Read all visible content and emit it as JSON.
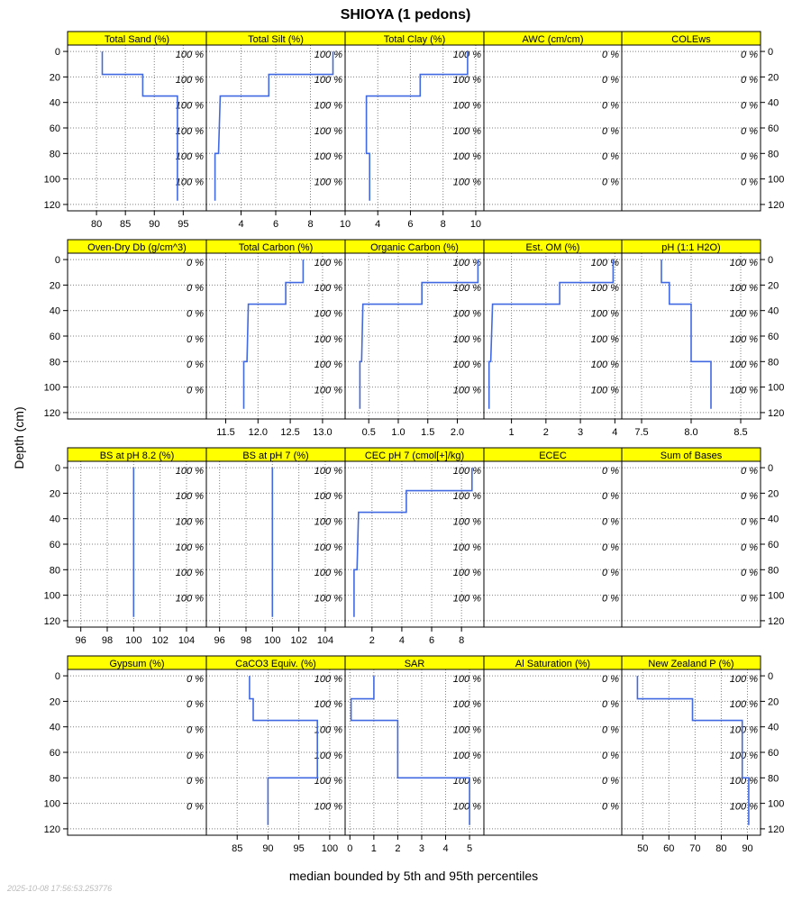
{
  "figure": {
    "title": "SHIOYA (1 pedons)",
    "ylabel": "Depth (cm)",
    "xlabel": "median bounded by 5th and 95th percentiles",
    "timestamp": "2025-10-08 17:56:53.253776",
    "colors": {
      "strip": "#ffff00",
      "line": "#4169e1",
      "grid": "#808080"
    }
  },
  "chart_data": [
    {
      "type": "line",
      "title": "Total Sand (%)",
      "xlim": [
        75,
        99
      ],
      "xticks": [
        80,
        85,
        90,
        95
      ],
      "ylim": [
        125,
        -5
      ],
      "yticks": [
        0,
        20,
        40,
        60,
        80,
        100,
        120
      ],
      "pct_labels": [
        "100 %",
        "100 %",
        "100 %",
        "100 %",
        "100 %",
        "100 %"
      ],
      "pct_depths": [
        2,
        22,
        42,
        62,
        82,
        102
      ],
      "series": [
        {
          "depth": [
            0,
            18,
            18,
            20,
            20,
            35,
            35,
            80,
            80,
            117
          ],
          "value": [
            81,
            81,
            88,
            88,
            88,
            88,
            94,
            94,
            94,
            94
          ]
        }
      ]
    },
    {
      "type": "line",
      "title": "Total Silt (%)",
      "xlim": [
        2,
        10
      ],
      "xticks": [
        4,
        6,
        8,
        10
      ],
      "ylim": [
        125,
        -5
      ],
      "yticks": [
        0,
        20,
        40,
        60,
        80,
        100,
        120
      ],
      "pct_labels": [
        "100 %",
        "100 %",
        "100 %",
        "100 %",
        "100 %",
        "100 %"
      ],
      "pct_depths": [
        2,
        22,
        42,
        62,
        82,
        102
      ],
      "series": [
        {
          "depth": [
            0,
            18,
            18,
            20,
            20,
            35,
            35,
            80,
            80,
            117
          ],
          "value": [
            9.3,
            9.3,
            5.6,
            5.6,
            5.6,
            5.6,
            2.8,
            2.7,
            2.5,
            2.5
          ]
        }
      ]
    },
    {
      "type": "line",
      "title": "Total Clay (%)",
      "xlim": [
        2,
        10.5
      ],
      "xticks": [
        4,
        6,
        8,
        10
      ],
      "ylim": [
        125,
        -5
      ],
      "yticks": [
        0,
        20,
        40,
        60,
        80,
        100,
        120
      ],
      "pct_labels": [
        "100 %",
        "100 %",
        "100 %",
        "100 %",
        "100 %",
        "100 %"
      ],
      "pct_depths": [
        2,
        22,
        42,
        62,
        82,
        102
      ],
      "series": [
        {
          "depth": [
            0,
            18,
            18,
            20,
            20,
            35,
            35,
            80,
            80,
            117
          ],
          "value": [
            9.5,
            9.5,
            6.6,
            6.6,
            6.6,
            6.6,
            3.3,
            3.3,
            3.5,
            3.5
          ]
        }
      ]
    },
    {
      "type": "line",
      "title": "AWC (cm/cm)",
      "xlim": [
        0,
        1
      ],
      "xticks": [],
      "ylim": [
        125,
        -5
      ],
      "yticks": [
        0,
        20,
        40,
        60,
        80,
        100,
        120
      ],
      "pct_labels": [
        "0 %",
        "0 %",
        "0 %",
        "0 %",
        "0 %",
        "0 %"
      ],
      "pct_depths": [
        2,
        22,
        42,
        62,
        82,
        102
      ],
      "series": []
    },
    {
      "type": "line",
      "title": "COLEws",
      "xlim": [
        0,
        1
      ],
      "xticks": [],
      "ylim": [
        125,
        -5
      ],
      "yticks": [
        0,
        20,
        40,
        60,
        80,
        100,
        120
      ],
      "pct_labels": [
        "0 %",
        "0 %",
        "0 %",
        "0 %",
        "0 %",
        "0 %"
      ],
      "pct_depths": [
        2,
        22,
        42,
        62,
        82,
        102
      ],
      "series": []
    },
    {
      "type": "line",
      "title": "Oven-Dry Db (g/cm^3)",
      "xlim": [
        0,
        1
      ],
      "xticks": [],
      "ylim": [
        125,
        -5
      ],
      "yticks": [
        0,
        20,
        40,
        60,
        80,
        100,
        120
      ],
      "pct_labels": [
        "0 %",
        "0 %",
        "0 %",
        "0 %",
        "0 %",
        "0 %"
      ],
      "pct_depths": [
        2,
        22,
        42,
        62,
        82,
        102
      ],
      "series": []
    },
    {
      "type": "line",
      "title": "Total Carbon (%)",
      "xlim": [
        11.2,
        13.35
      ],
      "xticks": [
        11.5,
        12.0,
        12.5,
        13.0
      ],
      "xtick_labels": [
        "11.5",
        "12.0",
        "12.5",
        "13.0"
      ],
      "ylim": [
        125,
        -5
      ],
      "yticks": [
        0,
        20,
        40,
        60,
        80,
        100,
        120
      ],
      "pct_labels": [
        "100 %",
        "100 %",
        "100 %",
        "100 %",
        "100 %",
        "100 %"
      ],
      "pct_depths": [
        2,
        22,
        42,
        62,
        82,
        102
      ],
      "series": [
        {
          "depth": [
            0,
            18,
            18,
            20,
            20,
            35,
            35,
            80,
            80,
            117
          ],
          "value": [
            12.7,
            12.7,
            12.43,
            12.43,
            12.43,
            12.43,
            11.85,
            11.83,
            11.78,
            11.78
          ]
        }
      ]
    },
    {
      "type": "line",
      "title": "Organic Carbon (%)",
      "xlim": [
        0.1,
        2.45
      ],
      "xticks": [
        0.5,
        1.0,
        1.5,
        2.0
      ],
      "xtick_labels": [
        "0.5",
        "1.0",
        "1.5",
        "2.0"
      ],
      "ylim": [
        125,
        -5
      ],
      "yticks": [
        0,
        20,
        40,
        60,
        80,
        100,
        120
      ],
      "pct_labels": [
        "100 %",
        "100 %",
        "100 %",
        "100 %",
        "100 %",
        "100 %"
      ],
      "pct_depths": [
        2,
        22,
        42,
        62,
        82,
        102
      ],
      "series": [
        {
          "depth": [
            0,
            18,
            18,
            20,
            20,
            35,
            35,
            80,
            80,
            117
          ],
          "value": [
            2.35,
            2.35,
            1.4,
            1.4,
            1.4,
            1.4,
            0.4,
            0.38,
            0.35,
            0.35
          ]
        }
      ]
    },
    {
      "type": "line",
      "title": "Est. OM (%)",
      "xlim": [
        0.2,
        4.2
      ],
      "xticks": [
        1,
        2,
        3,
        4
      ],
      "ylim": [
        125,
        -5
      ],
      "yticks": [
        0,
        20,
        40,
        60,
        80,
        100,
        120
      ],
      "pct_labels": [
        "100 %",
        "100 %",
        "100 %",
        "100 %",
        "100 %",
        "100 %"
      ],
      "pct_depths": [
        2,
        22,
        42,
        62,
        82,
        102
      ],
      "series": [
        {
          "depth": [
            0,
            18,
            18,
            20,
            20,
            35,
            35,
            80,
            80,
            117
          ],
          "value": [
            3.95,
            3.95,
            2.4,
            2.4,
            2.4,
            2.4,
            0.45,
            0.4,
            0.35,
            0.35
          ]
        }
      ]
    },
    {
      "type": "line",
      "title": "pH (1:1 H2O)",
      "xlim": [
        7.3,
        8.7
      ],
      "xticks": [
        7.5,
        8.0,
        8.5
      ],
      "xtick_labels": [
        "7.5",
        "8.0",
        "8.5"
      ],
      "ylim": [
        125,
        -5
      ],
      "yticks": [
        0,
        20,
        40,
        60,
        80,
        100,
        120
      ],
      "pct_labels": [
        "100 %",
        "100 %",
        "100 %",
        "100 %",
        "100 %",
        "100 %"
      ],
      "pct_depths": [
        2,
        22,
        42,
        62,
        82,
        102
      ],
      "series": [
        {
          "depth": [
            0,
            18,
            18,
            20,
            20,
            35,
            35,
            80,
            80,
            117
          ],
          "value": [
            7.7,
            7.7,
            7.78,
            7.78,
            7.78,
            7.78,
            8.0,
            8.0,
            8.2,
            8.2
          ]
        }
      ]
    },
    {
      "type": "line",
      "title": "BS at pH 8.2 (%)",
      "xlim": [
        95,
        105.5
      ],
      "xticks": [
        96,
        98,
        100,
        102,
        104
      ],
      "ylim": [
        125,
        -5
      ],
      "yticks": [
        0,
        20,
        40,
        60,
        80,
        100,
        120
      ],
      "pct_labels": [
        "100 %",
        "100 %",
        "100 %",
        "100 %",
        "100 %",
        "100 %"
      ],
      "pct_depths": [
        2,
        22,
        42,
        62,
        82,
        102
      ],
      "series": [
        {
          "depth": [
            0,
            117
          ],
          "value": [
            100,
            100
          ]
        }
      ]
    },
    {
      "type": "line",
      "title": "BS at pH 7 (%)",
      "xlim": [
        95,
        105.5
      ],
      "xticks": [
        96,
        98,
        100,
        102,
        104
      ],
      "ylim": [
        125,
        -5
      ],
      "yticks": [
        0,
        20,
        40,
        60,
        80,
        100,
        120
      ],
      "pct_labels": [
        "100 %",
        "100 %",
        "100 %",
        "100 %",
        "100 %",
        "100 %"
      ],
      "pct_depths": [
        2,
        22,
        42,
        62,
        82,
        102
      ],
      "series": [
        {
          "depth": [
            0,
            117
          ],
          "value": [
            100,
            100
          ]
        }
      ]
    },
    {
      "type": "line",
      "title": "CEC pH 7 (cmol[+]/kg)",
      "xlim": [
        0.2,
        9.5
      ],
      "xticks": [
        2,
        4,
        6,
        8
      ],
      "ylim": [
        125,
        -5
      ],
      "yticks": [
        0,
        20,
        40,
        60,
        80,
        100,
        120
      ],
      "pct_labels": [
        "100 %",
        "100 %",
        "100 %",
        "100 %",
        "100 %",
        "100 %"
      ],
      "pct_depths": [
        2,
        22,
        42,
        62,
        82,
        102
      ],
      "series": [
        {
          "depth": [
            0,
            18,
            18,
            20,
            20,
            35,
            35,
            80,
            80,
            117
          ],
          "value": [
            8.7,
            8.7,
            4.3,
            4.3,
            4.3,
            4.3,
            1.1,
            1.0,
            0.8,
            0.8
          ]
        }
      ]
    },
    {
      "type": "line",
      "title": "ECEC",
      "xlim": [
        0,
        1
      ],
      "xticks": [],
      "ylim": [
        125,
        -5
      ],
      "yticks": [
        0,
        20,
        40,
        60,
        80,
        100,
        120
      ],
      "pct_labels": [
        "0 %",
        "0 %",
        "0 %",
        "0 %",
        "0 %",
        "0 %"
      ],
      "pct_depths": [
        2,
        22,
        42,
        62,
        82,
        102
      ],
      "series": []
    },
    {
      "type": "line",
      "title": "Sum of Bases",
      "xlim": [
        0,
        1
      ],
      "xticks": [],
      "ylim": [
        125,
        -5
      ],
      "yticks": [
        0,
        20,
        40,
        60,
        80,
        100,
        120
      ],
      "pct_labels": [
        "0 %",
        "0 %",
        "0 %",
        "0 %",
        "0 %",
        "0 %"
      ],
      "pct_depths": [
        2,
        22,
        42,
        62,
        82,
        102
      ],
      "series": []
    },
    {
      "type": "line",
      "title": "Gypsum (%)",
      "xlim": [
        0,
        1
      ],
      "xticks": [],
      "ylim": [
        125,
        -5
      ],
      "yticks": [
        0,
        20,
        40,
        60,
        80,
        100,
        120
      ],
      "pct_labels": [
        "0 %",
        "0 %",
        "0 %",
        "0 %",
        "0 %",
        "0 %"
      ],
      "pct_depths": [
        2,
        22,
        42,
        62,
        82,
        102
      ],
      "series": []
    },
    {
      "type": "line",
      "title": "CaCO3 Equiv. (%)",
      "xlim": [
        80,
        102.5
      ],
      "xticks": [
        85,
        90,
        95,
        100
      ],
      "ylim": [
        125,
        -5
      ],
      "yticks": [
        0,
        20,
        40,
        60,
        80,
        100,
        120
      ],
      "pct_labels": [
        "100 %",
        "100 %",
        "100 %",
        "100 %",
        "100 %",
        "100 %"
      ],
      "pct_depths": [
        2,
        22,
        42,
        62,
        82,
        102
      ],
      "series": [
        {
          "depth": [
            0,
            18,
            18,
            20,
            20,
            35,
            35,
            80,
            80,
            117
          ],
          "value": [
            87,
            87,
            87.6,
            87.6,
            87.6,
            87.6,
            98,
            98,
            90,
            90
          ]
        }
      ]
    },
    {
      "type": "line",
      "title": "SAR",
      "xlim": [
        -0.2,
        5.6
      ],
      "xticks": [
        0,
        1,
        2,
        3,
        4,
        5
      ],
      "ylim": [
        125,
        -5
      ],
      "yticks": [
        0,
        20,
        40,
        60,
        80,
        100,
        120
      ],
      "pct_labels": [
        "100 %",
        "100 %",
        "100 %",
        "100 %",
        "100 %",
        "100 %"
      ],
      "pct_depths": [
        2,
        22,
        42,
        62,
        82,
        102
      ],
      "series": [
        {
          "depth": [
            0,
            18,
            18,
            20,
            20,
            35,
            35,
            80,
            80,
            117
          ],
          "value": [
            1,
            1,
            0.05,
            0.05,
            0.05,
            0.05,
            2,
            2,
            5,
            5
          ]
        }
      ]
    },
    {
      "type": "line",
      "title": "Al Saturation (%)",
      "xlim": [
        0,
        1
      ],
      "xticks": [],
      "ylim": [
        125,
        -5
      ],
      "yticks": [
        0,
        20,
        40,
        60,
        80,
        100,
        120
      ],
      "pct_labels": [
        "0 %",
        "0 %",
        "0 %",
        "0 %",
        "0 %",
        "0 %"
      ],
      "pct_depths": [
        2,
        22,
        42,
        62,
        82,
        102
      ],
      "series": []
    },
    {
      "type": "line",
      "title": "New Zealand P (%)",
      "xlim": [
        42,
        95
      ],
      "xticks": [
        50,
        60,
        70,
        80,
        90
      ],
      "ylim": [
        125,
        -5
      ],
      "yticks": [
        0,
        20,
        40,
        60,
        80,
        100,
        120
      ],
      "pct_labels": [
        "100 %",
        "100 %",
        "100 %",
        "100 %",
        "100 %",
        "100 %"
      ],
      "pct_depths": [
        2,
        22,
        42,
        62,
        82,
        102
      ],
      "series": [
        {
          "depth": [
            0,
            18,
            18,
            20,
            20,
            35,
            35,
            80,
            80,
            117
          ],
          "value": [
            48,
            48,
            69,
            69,
            69,
            69,
            88,
            88,
            90.5,
            90.5
          ]
        }
      ]
    }
  ]
}
